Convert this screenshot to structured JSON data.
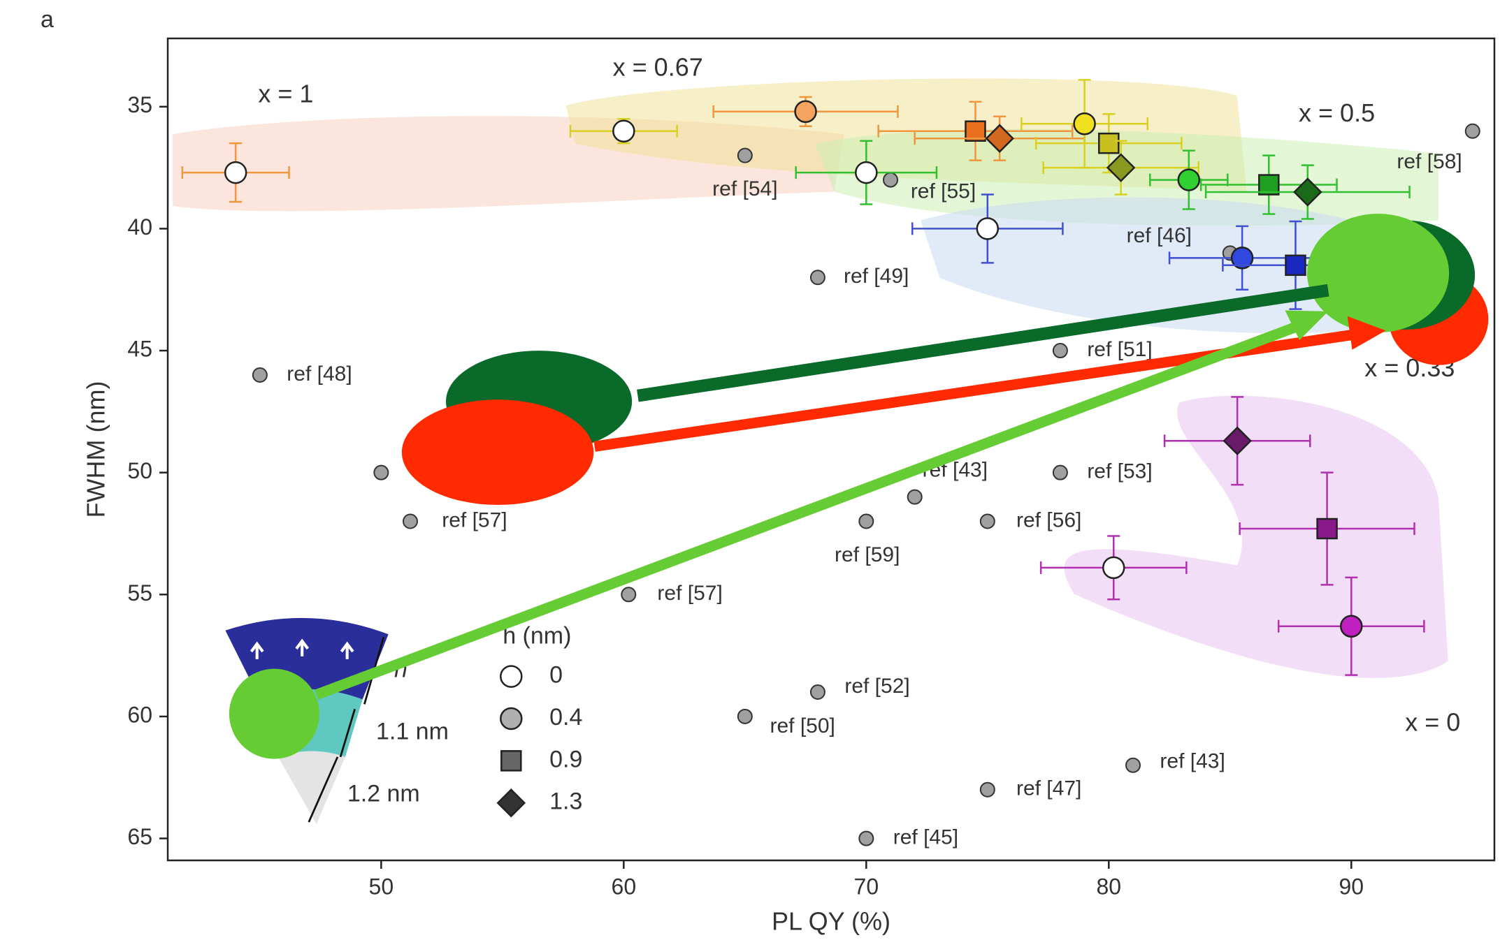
{
  "panel_label": "a",
  "chart_data": {
    "type": "scatter",
    "x_label": "PL QY (%)",
    "y_label": "FWHM (nm)",
    "xlim": [
      41.2,
      95.9
    ],
    "ylim": [
      32.2,
      65.9
    ],
    "y_inverted": true,
    "xticks": [
      50,
      60,
      70,
      80,
      90
    ],
    "yticks": [
      35,
      40,
      45,
      50,
      55,
      60,
      65
    ],
    "legend": {
      "title": "h (nm)",
      "values": [
        0,
        0.4,
        0.9,
        1.3
      ]
    },
    "series": [
      {
        "name": "x = 1",
        "color": "#f0963c",
        "label_color": "#d07030",
        "x": [
          44,
          67.5,
          74.5,
          75.5
        ],
        "values": [
          37.7,
          35.2,
          36,
          36.3
        ],
        "xerr": [
          2.2,
          3.8,
          4,
          3.5
        ],
        "yerr": [
          1.2,
          0.6,
          1.2,
          0.9
        ],
        "h": [
          0,
          0.4,
          0.9,
          1.3
        ],
        "marker_colors": [
          "#ffffff",
          "#f4a460",
          "#e8701e",
          "#d2691e"
        ]
      },
      {
        "name": "x = 0.67",
        "color": "#d8d020",
        "label_color": "#a8b030",
        "x": [
          60,
          79,
          80,
          80.5
        ],
        "values": [
          36,
          35.7,
          36.5,
          37.5
        ],
        "xerr": [
          2.2,
          2.6,
          3,
          3.2
        ],
        "yerr": [
          0.5,
          1.8,
          1.2,
          1.1
        ],
        "h": [
          0,
          0.4,
          0.9,
          1.3
        ],
        "marker_colors": [
          "#ffffff",
          "#f0e020",
          "#c8c020",
          "#8a9a20"
        ]
      },
      {
        "name": "x = 0.5",
        "color": "#30c030",
        "label_color": "#40a040",
        "x": [
          70,
          83.3,
          86.6,
          88.2
        ],
        "values": [
          37.7,
          38,
          38.2,
          38.5
        ],
        "xerr": [
          2.9,
          1.6,
          2.8,
          4.2
        ],
        "yerr": [
          1.3,
          1.2,
          1.2,
          1.1
        ],
        "h": [
          0,
          0.4,
          0.9,
          1.3
        ],
        "marker_colors": [
          "#ffffff",
          "#30d030",
          "#20a020",
          "#1a6a1a"
        ]
      },
      {
        "name": "x = 0.33",
        "color": "#4050d0",
        "label_color": "#4060b0",
        "x": [
          75,
          85.5,
          87.7
        ],
        "values": [
          40,
          41.2,
          41.5
        ],
        "xerr": [
          3.1,
          3,
          3
        ],
        "yerr": [
          1.4,
          1.3,
          1.8
        ],
        "h": [
          0,
          0.4,
          0.9
        ],
        "marker_colors": [
          "#ffffff",
          "#3048e0",
          "#1a28c0"
        ]
      },
      {
        "name": "x = 0",
        "color": "#b030b0",
        "label_color": "#a040a0",
        "x": [
          80.2,
          90,
          89,
          85.3
        ],
        "values": [
          53.9,
          56.3,
          52.3,
          48.7
        ],
        "xerr": [
          3,
          3,
          3.6,
          3
        ],
        "yerr": [
          1.3,
          2,
          2.3,
          1.8
        ],
        "h": [
          0,
          0.4,
          0.9,
          1.3
        ],
        "marker_colors": [
          "#ffffff",
          "#c020c0",
          "#8a1a8a",
          "#6a1a6a"
        ]
      }
    ],
    "references": {
      "color": "#a0a0a0",
      "x": [
        95,
        65,
        71,
        85,
        68,
        78,
        45,
        50,
        72,
        78,
        51.2,
        70,
        75,
        60.2,
        68,
        65,
        81,
        75,
        70
      ],
      "values": [
        36,
        37,
        38,
        41,
        42,
        45,
        46,
        50,
        51,
        50,
        52,
        52,
        52,
        55,
        59,
        60,
        62,
        63,
        65
      ],
      "labels": [
        "ref [58]",
        "ref [54]",
        "ref [55]",
        "ref [46]",
        "ref [49]",
        "ref [51]",
        "ref [48]",
        null,
        "ref [43]",
        "ref [53]",
        "ref [57]",
        "ref [59]",
        "ref [56]",
        "ref [57]",
        "ref [52]",
        "ref [50]",
        "ref [43]",
        "ref [47]",
        "ref [45]"
      ]
    },
    "inset_labels": [
      "h",
      "1.1 nm",
      "1.2 nm"
    ]
  }
}
